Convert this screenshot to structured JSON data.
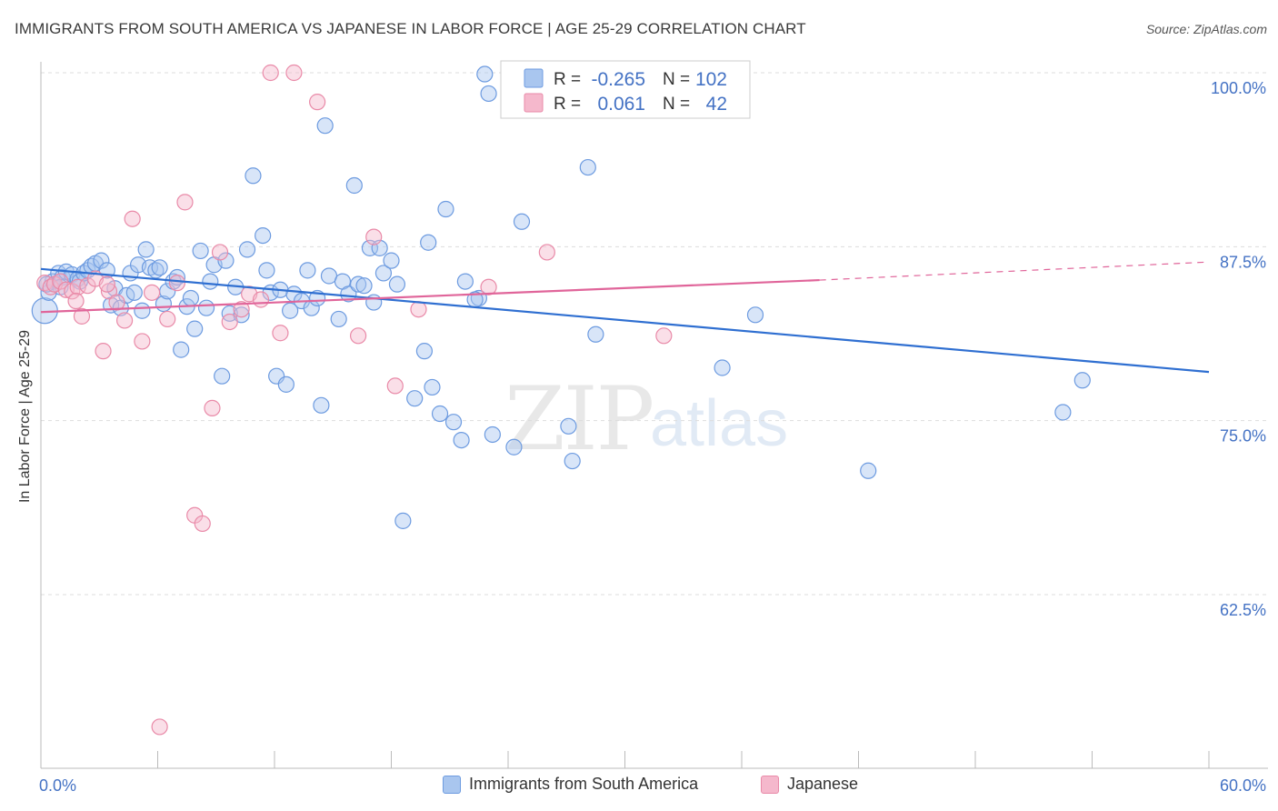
{
  "header": {
    "title": "IMMIGRANTS FROM SOUTH AMERICA VS JAPANESE IN LABOR FORCE | AGE 25-29 CORRELATION CHART",
    "source": "Source: ZipAtlas.com"
  },
  "watermark": {
    "zip": "ZIP",
    "atlas": "atlas"
  },
  "colors": {
    "blue_fill": "#a9c6ef",
    "blue_stroke": "#6d9be0",
    "blue_line": "#2f6fd1",
    "pink_fill": "#f5b8cc",
    "pink_stroke": "#e98aa8",
    "pink_line": "#e0659a",
    "tick_label": "#4472c4",
    "grid": "#dddddd"
  },
  "legend_stats": {
    "r_label": "R =",
    "n_label": "N =",
    "series": [
      {
        "r": "-0.265",
        "n": "102",
        "color": "blue"
      },
      {
        "r": "0.061",
        "n": "42",
        "color": "pink"
      }
    ]
  },
  "chart_data": {
    "type": "scatter",
    "title": "IMMIGRANTS FROM SOUTH AMERICA VS JAPANESE IN LABOR FORCE | AGE 25-29 CORRELATION CHART",
    "xlabel": "",
    "ylabel": "In Labor Force | Age 25-29",
    "xlim": [
      0,
      60
    ],
    "ylim": [
      50,
      102
    ],
    "x_tick_labels": [
      "0.0%",
      "60.0%"
    ],
    "y_ticks": [
      62.5,
      75.0,
      87.5,
      100.0
    ],
    "y_tick_labels": [
      "62.5%",
      "75.0%",
      "87.5%",
      "100.0%"
    ],
    "grid": true,
    "legend_position": "top-center",
    "series": [
      {
        "name": "Immigrants from South America",
        "color": "blue",
        "trend": {
          "x": [
            0,
            60
          ],
          "y": [
            85.9,
            78.5
          ],
          "dashed_from": null
        },
        "points": [
          [
            0.2,
            82.9
          ],
          [
            0.4,
            84.2
          ],
          [
            0.6,
            85.0
          ],
          [
            0.9,
            85.6
          ],
          [
            1.1,
            85.3
          ],
          [
            1.3,
            85.7
          ],
          [
            1.6,
            85.5
          ],
          [
            1.9,
            85.2
          ],
          [
            2.0,
            85.0
          ],
          [
            2.2,
            85.6
          ],
          [
            2.4,
            85.8
          ],
          [
            2.6,
            86.1
          ],
          [
            2.8,
            86.3
          ],
          [
            3.1,
            86.5
          ],
          [
            3.4,
            85.8
          ],
          [
            3.6,
            83.3
          ],
          [
            3.8,
            84.5
          ],
          [
            4.1,
            83.1
          ],
          [
            4.4,
            84.0
          ],
          [
            4.6,
            85.6
          ],
          [
            4.8,
            84.2
          ],
          [
            5.0,
            86.2
          ],
          [
            5.2,
            82.9
          ],
          [
            5.4,
            87.3
          ],
          [
            5.6,
            86.0
          ],
          [
            5.9,
            85.8
          ],
          [
            6.1,
            86.0
          ],
          [
            6.3,
            83.4
          ],
          [
            6.5,
            84.3
          ],
          [
            6.8,
            85.0
          ],
          [
            7.0,
            85.3
          ],
          [
            7.2,
            80.1
          ],
          [
            7.5,
            83.2
          ],
          [
            7.7,
            83.8
          ],
          [
            7.9,
            81.6
          ],
          [
            8.2,
            87.2
          ],
          [
            8.5,
            83.1
          ],
          [
            8.7,
            85.0
          ],
          [
            8.9,
            86.2
          ],
          [
            9.3,
            78.2
          ],
          [
            9.5,
            86.5
          ],
          [
            9.7,
            82.7
          ],
          [
            10.0,
            84.6
          ],
          [
            10.3,
            82.6
          ],
          [
            10.6,
            87.3
          ],
          [
            10.9,
            92.6
          ],
          [
            11.4,
            88.3
          ],
          [
            11.6,
            85.8
          ],
          [
            11.8,
            84.2
          ],
          [
            12.1,
            78.2
          ],
          [
            12.3,
            84.4
          ],
          [
            12.6,
            77.6
          ],
          [
            12.8,
            82.9
          ],
          [
            13.0,
            84.1
          ],
          [
            13.4,
            83.6
          ],
          [
            13.7,
            85.8
          ],
          [
            13.9,
            83.1
          ],
          [
            14.2,
            83.8
          ],
          [
            14.4,
            76.1
          ],
          [
            14.6,
            96.2
          ],
          [
            14.8,
            85.4
          ],
          [
            15.3,
            82.3
          ],
          [
            15.5,
            85.0
          ],
          [
            15.8,
            84.1
          ],
          [
            16.3,
            84.8
          ],
          [
            16.6,
            84.7
          ],
          [
            16.9,
            87.4
          ],
          [
            17.1,
            83.5
          ],
          [
            17.4,
            87.4
          ],
          [
            17.6,
            85.6
          ],
          [
            18.0,
            86.5
          ],
          [
            18.3,
            84.8
          ],
          [
            18.6,
            67.8
          ],
          [
            19.2,
            76.6
          ],
          [
            19.7,
            80.0
          ],
          [
            19.9,
            87.8
          ],
          [
            20.1,
            77.4
          ],
          [
            20.5,
            75.5
          ],
          [
            20.8,
            90.2
          ],
          [
            21.2,
            74.9
          ],
          [
            21.6,
            73.6
          ],
          [
            21.8,
            85.0
          ],
          [
            22.5,
            83.8
          ],
          [
            22.8,
            99.9
          ],
          [
            23.0,
            98.5
          ],
          [
            22.3,
            83.7
          ],
          [
            23.2,
            74.0
          ],
          [
            24.3,
            73.1
          ],
          [
            24.7,
            89.3
          ],
          [
            26.7,
            100.0
          ],
          [
            27.1,
            74.6
          ],
          [
            27.3,
            72.1
          ],
          [
            28.1,
            93.2
          ],
          [
            28.5,
            81.2
          ],
          [
            35.0,
            78.8
          ],
          [
            36.7,
            82.6
          ],
          [
            42.5,
            71.4
          ],
          [
            52.5,
            75.6
          ],
          [
            53.5,
            77.9
          ],
          [
            16.1,
            91.9
          ],
          [
            0.3,
            84.8
          ],
          [
            1.0,
            84.6
          ]
        ]
      },
      {
        "name": "Japanese",
        "color": "pink",
        "trend": {
          "x": [
            0,
            40
          ],
          "y": [
            82.8,
            85.1
          ],
          "dashed_from": 40,
          "dashed_to": [
            60,
            86.4
          ]
        },
        "points": [
          [
            0.2,
            84.9
          ],
          [
            0.5,
            84.6
          ],
          [
            0.7,
            84.8
          ],
          [
            1.0,
            85.0
          ],
          [
            1.3,
            84.4
          ],
          [
            1.6,
            84.3
          ],
          [
            1.9,
            84.6
          ],
          [
            2.1,
            82.5
          ],
          [
            2.4,
            84.7
          ],
          [
            2.8,
            85.2
          ],
          [
            3.2,
            80.0
          ],
          [
            3.5,
            84.3
          ],
          [
            3.9,
            83.5
          ],
          [
            4.3,
            82.2
          ],
          [
            4.7,
            89.5
          ],
          [
            5.2,
            80.7
          ],
          [
            5.7,
            84.2
          ],
          [
            6.1,
            53.0
          ],
          [
            6.5,
            82.3
          ],
          [
            7.0,
            84.9
          ],
          [
            7.4,
            90.7
          ],
          [
            7.9,
            68.2
          ],
          [
            8.3,
            67.6
          ],
          [
            8.8,
            75.9
          ],
          [
            9.2,
            87.1
          ],
          [
            9.7,
            82.1
          ],
          [
            10.3,
            83.0
          ],
          [
            10.7,
            84.1
          ],
          [
            11.3,
            83.7
          ],
          [
            11.8,
            100.0
          ],
          [
            12.3,
            81.3
          ],
          [
            13.0,
            100.0
          ],
          [
            14.2,
            97.9
          ],
          [
            16.3,
            81.1
          ],
          [
            17.1,
            88.2
          ],
          [
            18.2,
            77.5
          ],
          [
            19.4,
            83.0
          ],
          [
            23.0,
            84.6
          ],
          [
            26.0,
            87.1
          ],
          [
            32.0,
            81.1
          ],
          [
            3.4,
            84.8
          ],
          [
            1.8,
            83.6
          ]
        ]
      }
    ]
  }
}
